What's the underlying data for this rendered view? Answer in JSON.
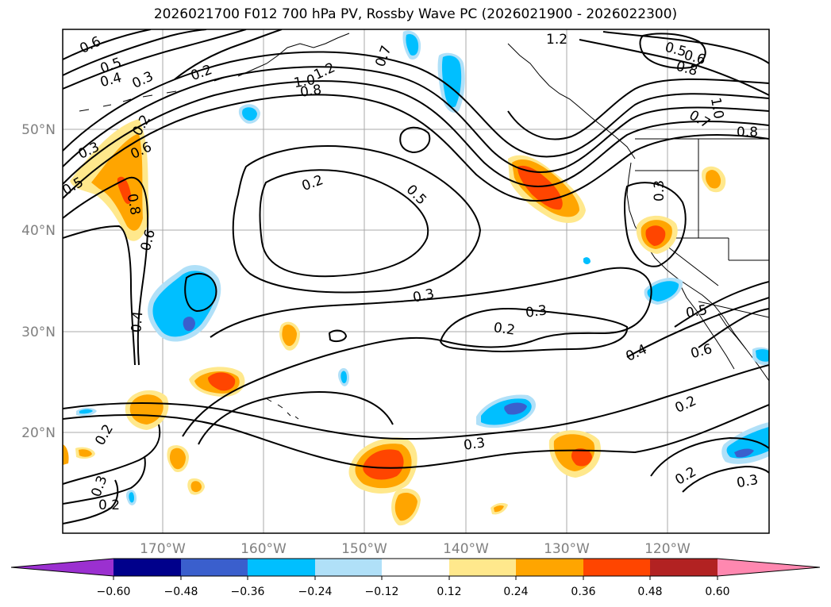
{
  "title": "2026021700 F012 700 hPa PV, Rossby Wave PC (2026021900 - 2026022300)",
  "latitude_labels": [
    "50°N",
    "40°N",
    "30°N",
    "20°N"
  ],
  "longitude_labels": [
    "170°W",
    "160°W",
    "150°W",
    "140°W",
    "130°W",
    "120°W"
  ],
  "contour_labels": [
    "0.6",
    "0.5",
    "0.4",
    "0.3",
    "0.2",
    "1.0",
    "1.2",
    "0.8",
    "0.7",
    "1.2",
    "0.5",
    "0.6",
    "0.8",
    "1.0",
    "0.7",
    "0.8",
    "0.3",
    "0.6",
    "0.5",
    "0.2",
    "0.5",
    "0.8",
    "0.6",
    "0.3",
    "0.3",
    "0.2",
    "0.3",
    "0.5",
    "0.4",
    "0.6",
    "0.4",
    "0.2",
    "0.2",
    "0.3",
    "0.2",
    "0.2",
    "0.3",
    "0.2"
  ],
  "colorbar": {
    "ticks": [
      "−0.60",
      "−0.48",
      "−0.36",
      "−0.24",
      "−0.12",
      "0.12",
      "0.24",
      "0.36",
      "0.48",
      "0.60"
    ],
    "colors": [
      "#9b30d0",
      "#00008b",
      "#3a5fcd",
      "#00bfff",
      "#b0e0f8",
      "#ffffff",
      "#ffe88c",
      "#ffa500",
      "#ff4500",
      "#b22222",
      "#ff88b0"
    ]
  },
  "colors": {
    "positive_light": "#ffe88c",
    "positive_mid": "#ffa500",
    "positive_strong": "#ff4500",
    "negative_light": "#b0e0f8",
    "negative_mid": "#00bfff",
    "negative_strong": "#3a5fcd",
    "contour": "#000000",
    "grid": "#a8a8a8"
  }
}
